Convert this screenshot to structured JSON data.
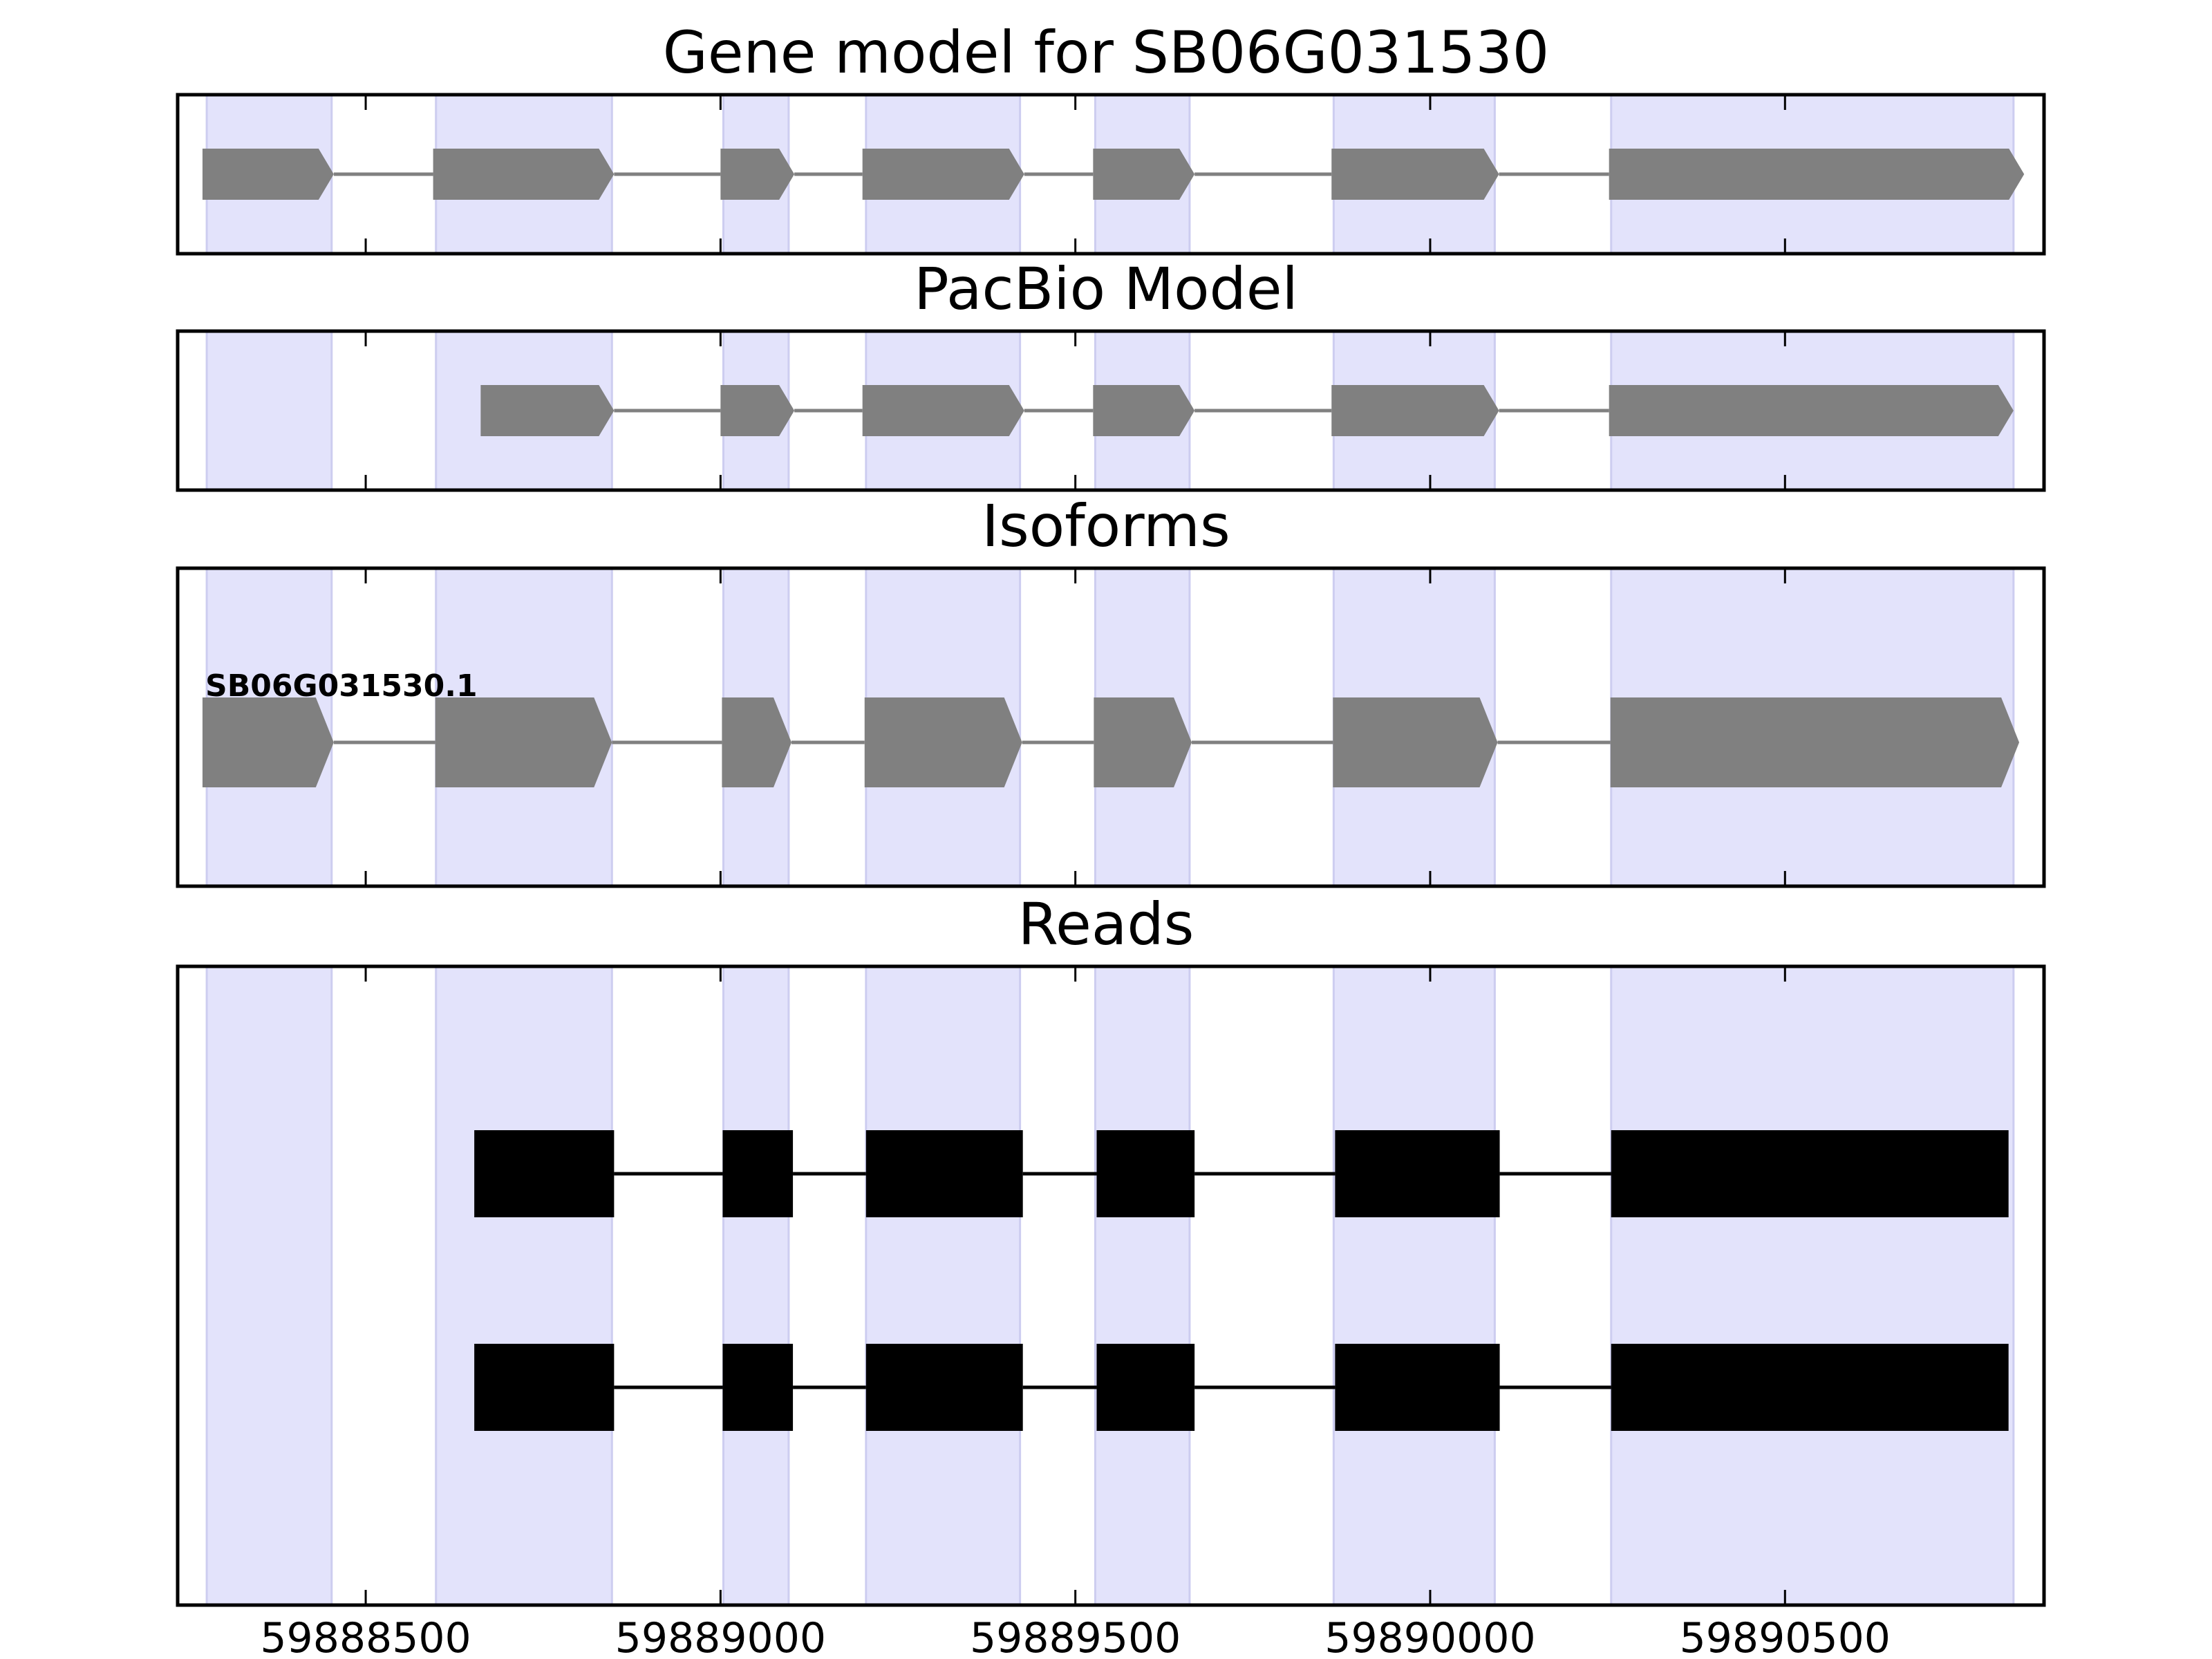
{
  "chart_data": {
    "type": "gene_structure",
    "xlim": [
      59888235,
      59890865
    ],
    "xticks": [
      59888500,
      59889000,
      59889500,
      59890000,
      59890500
    ],
    "xtick_labels": [
      "59888500",
      "59889000",
      "59889500",
      "59890000",
      "59890500"
    ],
    "exon_shading": [
      [
        59888276,
        59888452
      ],
      [
        59888599,
        59888847
      ],
      [
        59889004,
        59889096
      ],
      [
        59889205,
        59889422
      ],
      [
        59889528,
        59889661
      ],
      [
        59889864,
        59890091
      ],
      [
        59890255,
        59890822
      ]
    ],
    "colors": {
      "shading": "#e3e3fb",
      "shading_edge": "#cdcdf0",
      "gene_feature": "#808080",
      "read": "#000000"
    },
    "panels": [
      {
        "title": "Gene model for SB06G031530",
        "kind": "arrow_model",
        "features": [
          [
            59888270,
            59888455
          ],
          [
            59888595,
            59888850
          ],
          [
            59889000,
            59889104
          ],
          [
            59889200,
            59889428
          ],
          [
            59889525,
            59889668
          ],
          [
            59889861,
            59890097
          ],
          [
            59890252,
            59890837
          ]
        ]
      },
      {
        "title": "PacBio Model",
        "kind": "arrow_model",
        "features": [
          [
            59888662,
            59888850
          ],
          [
            59889000,
            59889104
          ],
          [
            59889200,
            59889428
          ],
          [
            59889525,
            59889668
          ],
          [
            59889861,
            59890097
          ],
          [
            59890252,
            59890822
          ]
        ]
      },
      {
        "title": "Isoforms",
        "kind": "isoforms",
        "isoforms": [
          {
            "name": "SB06G031530.1",
            "features": [
              [
                59888270,
                59888455
              ],
              [
                59888598,
                59888847
              ],
              [
                59889002,
                59889100
              ],
              [
                59889203,
                59889425
              ],
              [
                59889526,
                59889664
              ],
              [
                59889863,
                59890095
              ],
              [
                59890254,
                59890830
              ]
            ]
          }
        ]
      },
      {
        "title": "Reads",
        "kind": "reads",
        "reads": [
          [
            [
              59888653,
              59888850
            ],
            [
              59889003,
              59889102
            ],
            [
              59889205,
              59889426
            ],
            [
              59889530,
              59889668
            ],
            [
              59889866,
              59890098
            ],
            [
              59890255,
              59890815
            ]
          ],
          [
            [
              59888653,
              59888850
            ],
            [
              59889003,
              59889102
            ],
            [
              59889205,
              59889426
            ],
            [
              59889530,
              59889668
            ],
            [
              59889866,
              59890098
            ],
            [
              59890255,
              59890815
            ]
          ]
        ]
      }
    ]
  }
}
